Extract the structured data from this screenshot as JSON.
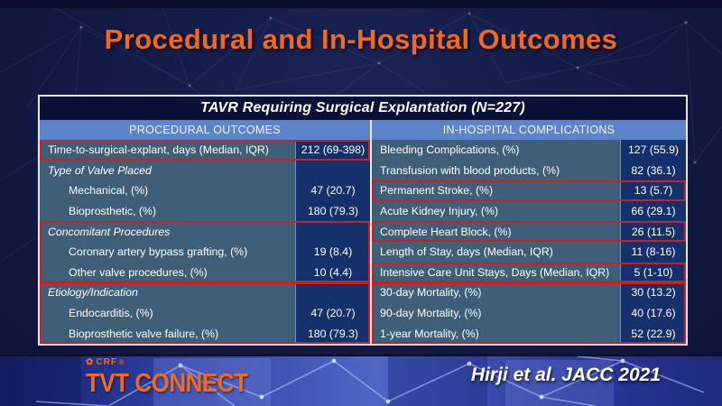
{
  "slide": {
    "title": "Procedural and In-Hospital Outcomes",
    "citation": "Hirji et al. JACC 2021",
    "logo": {
      "brand": "CRF",
      "reg_mark": "®",
      "name": "TVT CONNECT",
      "flower_icon": "✿"
    }
  },
  "table": {
    "title": "TAVR Requiring Surgical Explantation (N=227)",
    "left": {
      "header": "PROCEDURAL OUTCOMES",
      "rows": [
        {
          "label": "Time-to-surgical-explant, days (Median, IQR)",
          "value": "212 (69-398)",
          "style": "plain"
        },
        {
          "label": "Type of Valve Placed",
          "value": "",
          "style": "section"
        },
        {
          "label": "Mechanical, (%)",
          "value": "47 (20.7)",
          "style": "indent"
        },
        {
          "label": "Bioprosthetic, (%)",
          "value": "180 (79.3)",
          "style": "indent"
        },
        {
          "label": "Concomitant Procedures",
          "value": "",
          "style": "section"
        },
        {
          "label": "Coronary artery bypass grafting, (%)",
          "value": "19 (8.4)",
          "style": "indent"
        },
        {
          "label": "Other valve procedures, (%)",
          "value": "10 (4.4)",
          "style": "indent"
        },
        {
          "label": "Etiology/Indication",
          "value": "",
          "style": "section"
        },
        {
          "label": "Endocarditis, (%)",
          "value": "47 (20.7)",
          "style": "indent"
        },
        {
          "label": "Bioprosthetic valve failure, (%)",
          "value": "180 (79.3)",
          "style": "indent"
        }
      ],
      "highlight_boxes": [
        {
          "start": 0,
          "span": 1
        },
        {
          "start": 4,
          "span": 3
        },
        {
          "start": 7,
          "span": 3
        }
      ]
    },
    "right": {
      "header": "IN-HOSPITAL COMPLICATIONS",
      "rows": [
        {
          "label": "Bleeding Complications, (%)",
          "value": "127 (55.9)",
          "style": "plain"
        },
        {
          "label": "Transfusion with blood products, (%)",
          "value": "82 (36.1)",
          "style": "plain"
        },
        {
          "label": "Permanent Stroke, (%)",
          "value": "13 (5.7)",
          "style": "plain"
        },
        {
          "label": "Acute Kidney Injury, (%)",
          "value": "66 (29.1)",
          "style": "plain"
        },
        {
          "label": "Complete Heart Block, (%)",
          "value": "26 (11.5)",
          "style": "plain"
        },
        {
          "label": "Length of Stay, days (Median, IQR)",
          "value": "11 (8-16)",
          "style": "plain"
        },
        {
          "label": "Intensive Care Unit Stays, Days (Median, IQR)",
          "value": "5 (1-10)",
          "style": "plain"
        },
        {
          "label": "30-day Mortality, (%)",
          "value": "30 (13.2)",
          "style": "plain"
        },
        {
          "label": "90-day Mortality, (%)",
          "value": "40 (17.6)",
          "style": "plain"
        },
        {
          "label": "1-year Mortality, (%)",
          "value": "52 (22.9)",
          "style": "plain"
        }
      ],
      "highlight_boxes": [
        {
          "start": 2,
          "span": 1
        },
        {
          "start": 4,
          "span": 1
        },
        {
          "start": 6,
          "span": 1
        },
        {
          "start": 7,
          "span": 3
        }
      ]
    }
  },
  "colors": {
    "accent_orange": "#f3671f",
    "highlight_red": "#c92026",
    "column_header_blue": "#5d83c8",
    "label_cell_blue": "#3f5f78",
    "value_cell_navy": "#14316b",
    "slide_navy": "#121a44"
  }
}
